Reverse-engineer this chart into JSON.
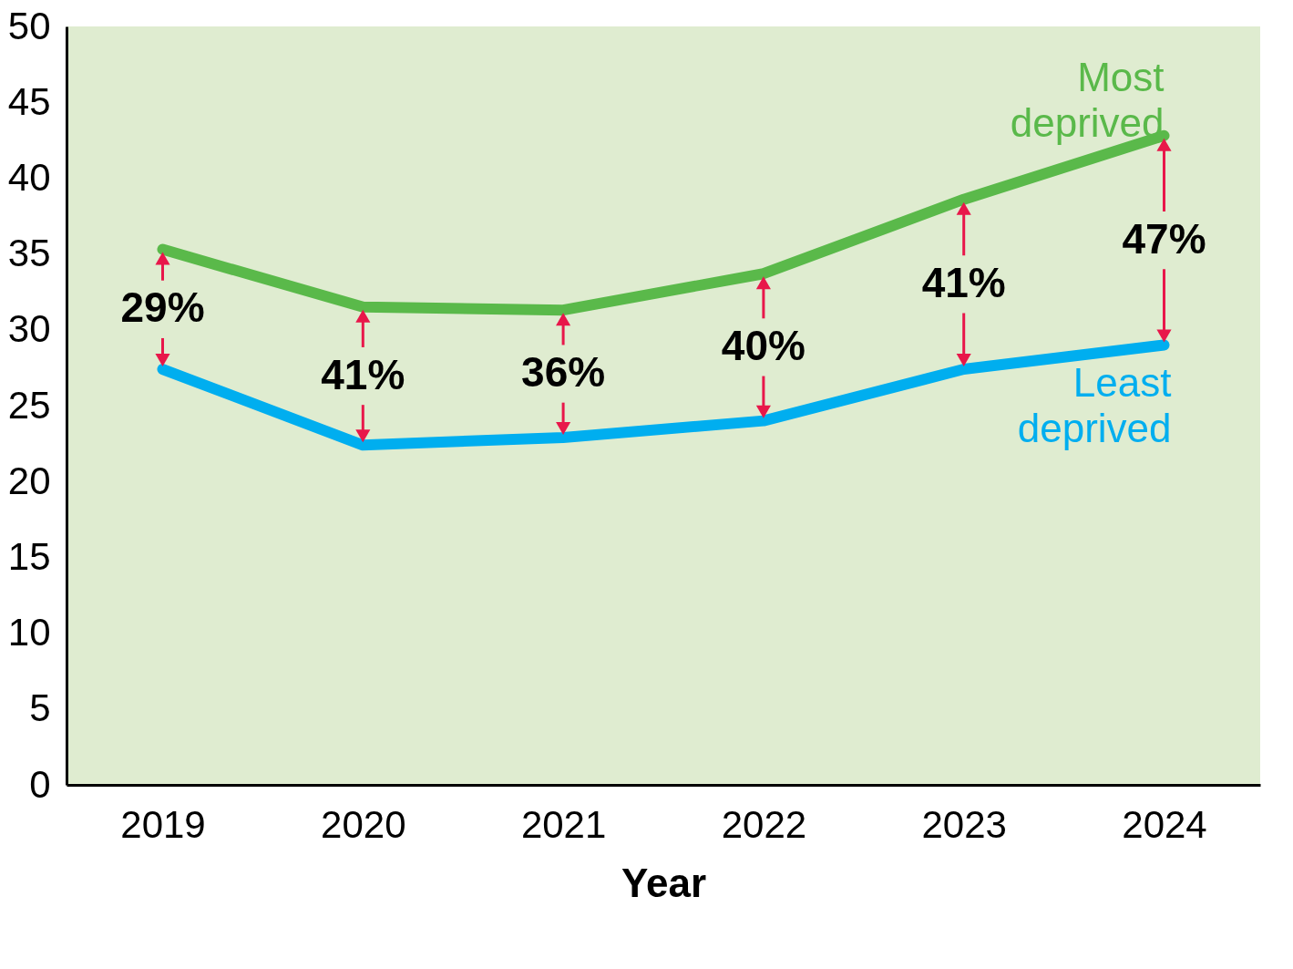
{
  "chart_data": {
    "type": "line",
    "xlabel": "Year",
    "categories": [
      "2019",
      "2020",
      "2021",
      "2022",
      "2023",
      "2024"
    ],
    "series": [
      {
        "name": "Most deprived",
        "color": "#5ab94a",
        "values": [
          35.3,
          31.5,
          31.3,
          33.7,
          38.6,
          42.8
        ]
      },
      {
        "name": "Least deprived",
        "color": "#00aeef",
        "values": [
          27.4,
          22.4,
          22.9,
          24.0,
          27.4,
          29.0
        ]
      }
    ],
    "ylim": [
      0,
      50
    ],
    "yticks": [
      0,
      5,
      10,
      15,
      20,
      25,
      30,
      35,
      40,
      45,
      50
    ],
    "grid": false,
    "legend": false,
    "marker": "none",
    "line_style": "solid",
    "annotations": [
      "29%",
      "41%",
      "36%",
      "40%",
      "41%",
      {
        "text": "47%",
        "x": "2024",
        "y": 42.8
      }
    ]
  }
}
